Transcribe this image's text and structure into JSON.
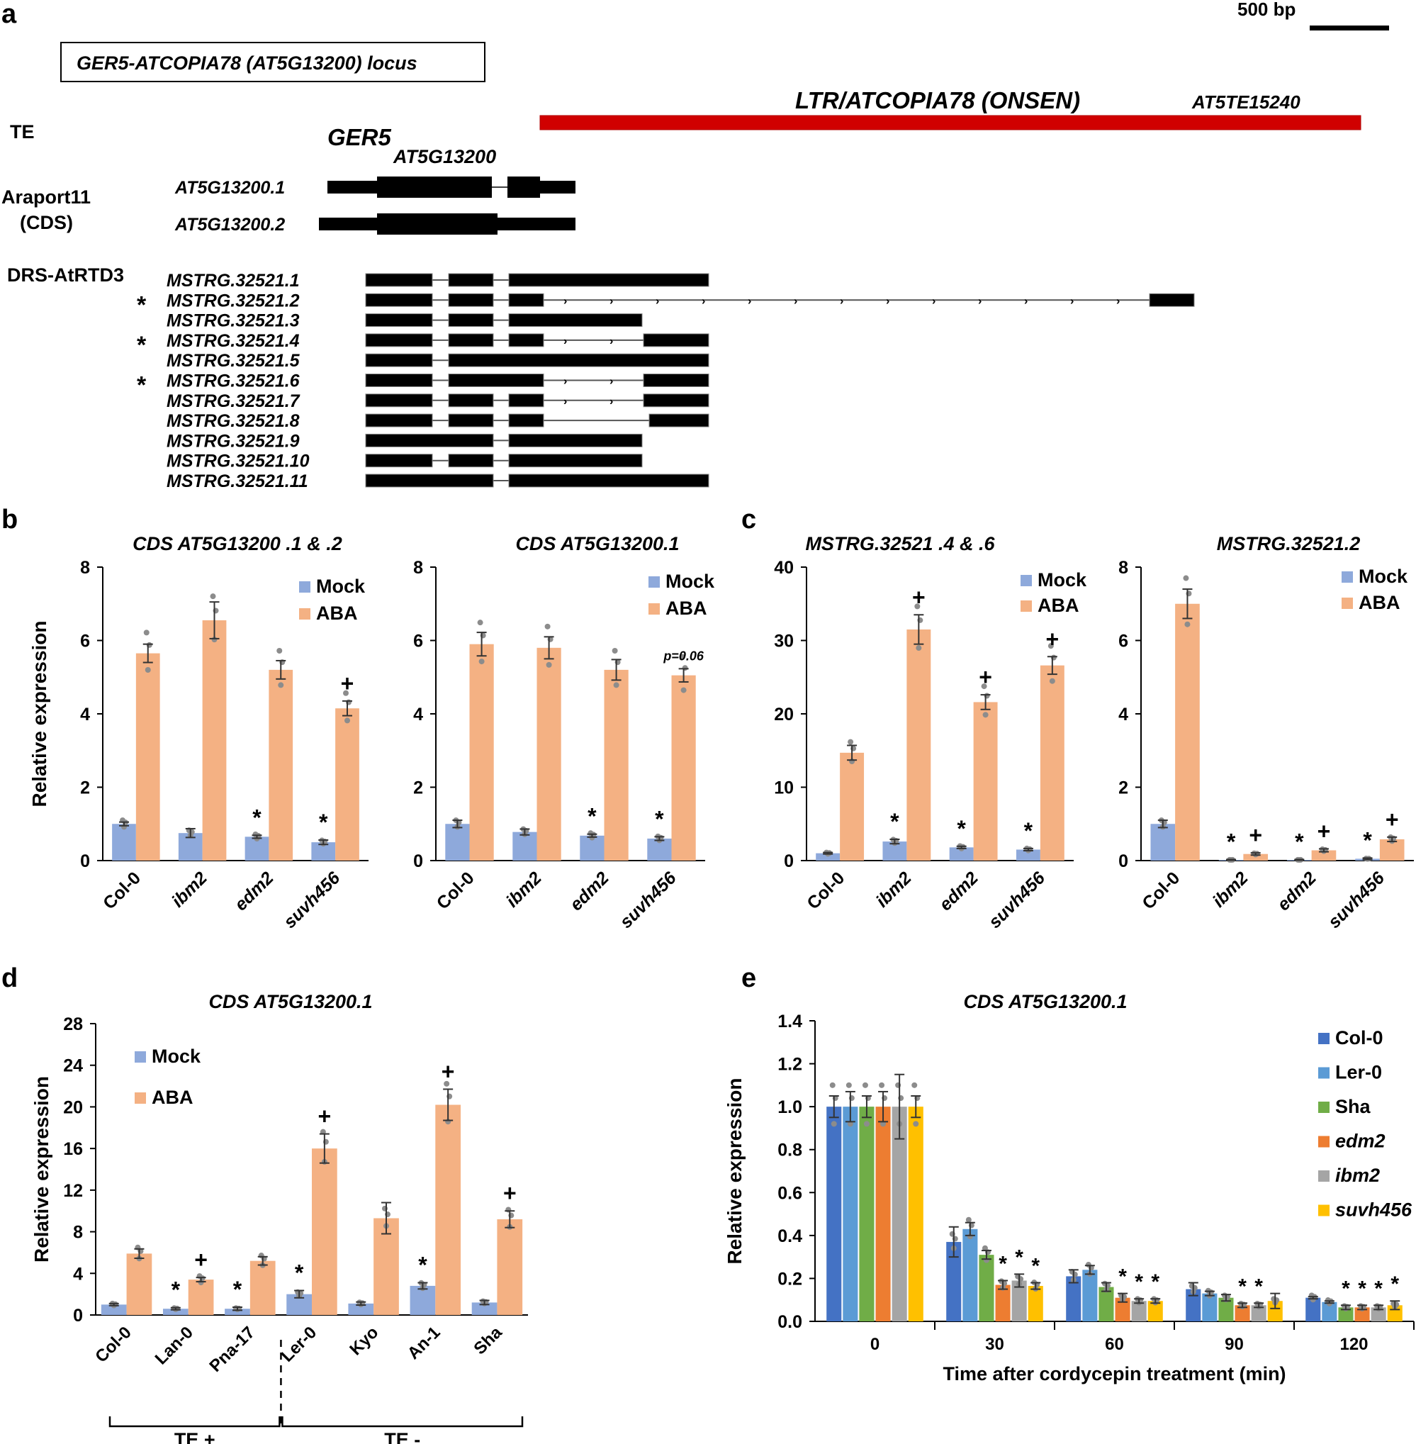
{
  "colors": {
    "mock": "#8EA9DB",
    "aba": "#F4B183",
    "mock_dark": "#4472C4",
    "ler": "#5B9BD5",
    "sha": "#70AD47",
    "edm2": "#ED7D31",
    "ibm2": "#A5A5A5",
    "suvh456": "#FFC000",
    "te_bar": "#D00000",
    "exon": "#000000",
    "dot": "#8C8C8C"
  },
  "panel_a": {
    "panel_label": "a",
    "scale_bar": "500 bp",
    "locus_box": "GER5-ATCOPIA78 (AT5G13200) locus",
    "te_row_label": "TE",
    "te_name": "LTR/ATCOPIA78 (ONSEN)",
    "te_id": "AT5TE15240",
    "gene_name": "GER5",
    "gene_id": "AT5G13200",
    "araport_label_1": "Araport11",
    "araport_label_2": "(CDS)",
    "araport_transcripts": [
      "AT5G13200.1",
      "AT5G13200.2"
    ],
    "drs_label": "DRS-AtRTD3",
    "drs_transcripts": [
      {
        "name": "MSTRG.32521.1",
        "star": ""
      },
      {
        "name": "MSTRG.32521.2",
        "star": "*"
      },
      {
        "name": "MSTRG.32521.3",
        "star": ""
      },
      {
        "name": "MSTRG.32521.4",
        "star": "*"
      },
      {
        "name": "MSTRG.32521.5",
        "star": ""
      },
      {
        "name": "MSTRG.32521.6",
        "star": "*"
      },
      {
        "name": "MSTRG.32521.7",
        "star": ""
      },
      {
        "name": "MSTRG.32521.8",
        "star": ""
      },
      {
        "name": "MSTRG.32521.9",
        "star": ""
      },
      {
        "name": "MSTRG.32521.10",
        "star": ""
      },
      {
        "name": "MSTRG.32521.11",
        "star": ""
      }
    ]
  },
  "panel_labels": {
    "b": "b",
    "c": "c",
    "d": "d",
    "e": "e"
  },
  "chart_data": [
    {
      "id": "b1",
      "type": "bar",
      "title": "CDS AT5G13200 .1 & .2",
      "ylabel": "Relative expression",
      "ylim": [
        0,
        8
      ],
      "yticks": [
        0,
        2,
        4,
        6,
        8
      ],
      "categories": [
        "Col-0",
        "ibm2",
        "edm2",
        "suvh456"
      ],
      "series": [
        {
          "name": "Mock",
          "values": [
            1.0,
            0.75,
            0.65,
            0.5
          ],
          "errors": [
            0.05,
            0.12,
            0.04,
            0.06
          ],
          "marks": [
            "",
            "",
            "*",
            "*"
          ]
        },
        {
          "name": "ABA",
          "values": [
            5.65,
            6.55,
            5.2,
            4.15
          ],
          "errors": [
            0.25,
            0.5,
            0.25,
            0.2
          ],
          "marks": [
            "",
            "",
            "",
            "+"
          ]
        }
      ],
      "legend_position": "top-right"
    },
    {
      "id": "b2",
      "type": "bar",
      "title": "CDS AT5G13200.1",
      "ylim": [
        0,
        8
      ],
      "yticks": [
        0,
        2,
        4,
        6,
        8
      ],
      "categories": [
        "Col-0",
        "ibm2",
        "edm2",
        "suvh456"
      ],
      "series": [
        {
          "name": "Mock",
          "values": [
            1.0,
            0.78,
            0.68,
            0.6
          ],
          "errors": [
            0.1,
            0.08,
            0.04,
            0.05
          ],
          "marks": [
            "",
            "",
            "*",
            "*"
          ]
        },
        {
          "name": "ABA",
          "values": [
            5.9,
            5.8,
            5.2,
            5.05
          ],
          "errors": [
            0.32,
            0.3,
            0.28,
            0.18
          ],
          "marks": [
            "",
            "",
            "",
            "p=0.06"
          ]
        }
      ],
      "legend_position": "top-right"
    },
    {
      "id": "c1",
      "type": "bar",
      "title": "MSTRG.32521 .4 & .6",
      "ylim": [
        0,
        40
      ],
      "yticks": [
        0,
        10,
        20,
        30,
        40
      ],
      "categories": [
        "Col-0",
        "ibm2",
        "edm2",
        "suvh456"
      ],
      "series": [
        {
          "name": "Mock",
          "values": [
            1.0,
            2.6,
            1.8,
            1.5
          ],
          "errors": [
            0.1,
            0.3,
            0.15,
            0.15
          ],
          "marks": [
            "",
            "*",
            "*",
            "*"
          ]
        },
        {
          "name": "ABA",
          "values": [
            14.7,
            31.5,
            21.6,
            26.6
          ],
          "errors": [
            1.0,
            2.0,
            1.0,
            1.2
          ],
          "marks": [
            "",
            "+",
            "+",
            "+"
          ]
        }
      ],
      "legend_position": "top-right"
    },
    {
      "id": "c2",
      "type": "bar",
      "title": "MSTRG.32521.2",
      "ylim": [
        0,
        8
      ],
      "yticks": [
        0,
        2,
        4,
        6,
        8
      ],
      "categories": [
        "Col-0",
        "ibm2",
        "edm2",
        "suvh456"
      ],
      "series": [
        {
          "name": "Mock",
          "values": [
            1.0,
            0.02,
            0.02,
            0.05
          ],
          "errors": [
            0.1,
            0.01,
            0.01,
            0.02
          ],
          "marks": [
            "",
            "*",
            "*",
            "*"
          ]
        },
        {
          "name": "ABA",
          "values": [
            7.0,
            0.18,
            0.28,
            0.58
          ],
          "errors": [
            0.4,
            0.03,
            0.04,
            0.06
          ],
          "marks": [
            "",
            "+",
            "+",
            "+"
          ]
        }
      ],
      "legend_position": "top-right"
    },
    {
      "id": "d",
      "type": "bar",
      "title": "CDS AT5G13200.1",
      "ylabel": "Relative expression",
      "ylim": [
        0,
        28
      ],
      "yticks": [
        0,
        4,
        8,
        12,
        16,
        20,
        24,
        28
      ],
      "categories": [
        "Col-0",
        "Lan-0",
        "Pna-17",
        "Ler-0",
        "Kyo",
        "An-1",
        "Sha"
      ],
      "series": [
        {
          "name": "Mock",
          "values": [
            1.0,
            0.6,
            0.6,
            2.0,
            1.1,
            2.8,
            1.2
          ],
          "errors": [
            0.1,
            0.1,
            0.15,
            0.35,
            0.15,
            0.3,
            0.2
          ],
          "marks": [
            "",
            "*",
            "*",
            "*",
            "",
            "*",
            ""
          ]
        },
        {
          "name": "ABA",
          "values": [
            5.9,
            3.4,
            5.2,
            16.0,
            9.3,
            20.2,
            9.2
          ],
          "errors": [
            0.45,
            0.2,
            0.4,
            1.4,
            1.5,
            1.5,
            0.8
          ],
          "marks": [
            "",
            "+",
            "",
            "+",
            "",
            "+",
            "+"
          ]
        }
      ],
      "groups": [
        {
          "label": "TE +",
          "range": [
            0,
            2
          ]
        },
        {
          "label": "TE -",
          "range": [
            3,
            6
          ]
        }
      ],
      "legend_position": "top-left"
    },
    {
      "id": "e",
      "type": "bar",
      "title": "CDS AT5G13200.1",
      "ylabel": "Relative expression",
      "xlabel": "Time after cordycepin treatment (min)",
      "ylim": [
        0,
        1.4
      ],
      "yticks": [
        "0.0",
        "0.2",
        "0.4",
        "0.6",
        "0.8",
        "1.0",
        "1.2",
        "1.4"
      ],
      "categories": [
        "0",
        "30",
        "60",
        "90",
        "120"
      ],
      "series": [
        {
          "name": "Col-0",
          "values": [
            1.0,
            0.37,
            0.21,
            0.15,
            0.11
          ],
          "errors": [
            0.05,
            0.07,
            0.03,
            0.03,
            0.005
          ],
          "marks": [
            "",
            "",
            "",
            "",
            ""
          ]
        },
        {
          "name": "Ler-0",
          "values": [
            1.0,
            0.43,
            0.24,
            0.13,
            0.09
          ],
          "errors": [
            0.07,
            0.03,
            0.02,
            0.01,
            0.005
          ],
          "marks": [
            "",
            "",
            "",
            "",
            ""
          ]
        },
        {
          "name": "Sha",
          "values": [
            1.0,
            0.31,
            0.16,
            0.11,
            0.065
          ],
          "errors": [
            0.05,
            0.02,
            0.02,
            0.015,
            0.01
          ],
          "marks": [
            "",
            "",
            "",
            "",
            "*"
          ]
        },
        {
          "name": "edm2",
          "values": [
            1.0,
            0.17,
            0.11,
            0.075,
            0.065
          ],
          "errors": [
            0.07,
            0.02,
            0.02,
            0.01,
            0.01
          ],
          "marks": [
            "",
            "*",
            "*",
            "*",
            "*"
          ]
        },
        {
          "name": "ibm2",
          "values": [
            1.0,
            0.19,
            0.095,
            0.075,
            0.065
          ],
          "errors": [
            0.15,
            0.03,
            0.01,
            0.01,
            0.01
          ],
          "marks": [
            "",
            "*",
            "*",
            "*",
            "*"
          ]
        },
        {
          "name": "suvh456",
          "values": [
            1.0,
            0.165,
            0.095,
            0.095,
            0.075
          ],
          "errors": [
            0.05,
            0.015,
            0.01,
            0.035,
            0.02
          ],
          "marks": [
            "",
            "*",
            "*",
            "",
            "*"
          ]
        }
      ],
      "legend_position": "right"
    }
  ]
}
